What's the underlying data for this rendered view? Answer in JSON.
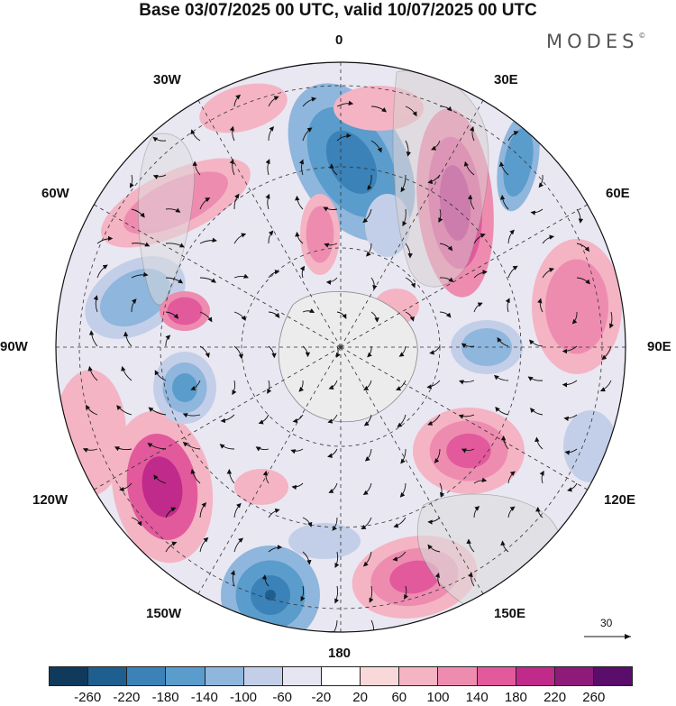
{
  "title": "Base 03/07/2025 00 UTC, valid 10/07/2025 00 UTC",
  "brand": "MODES",
  "brand_mark": "©",
  "map": {
    "projection": "south-polar-stereographic",
    "meridian_labels": {
      "m0": "0",
      "m30e": "30E",
      "m60e": "60E",
      "m90e": "90E",
      "m120e": "120E",
      "m150e": "150E",
      "m180": "180",
      "m150w": "150W",
      "m120w": "120W",
      "m90w": "90W",
      "m60w": "60W",
      "m30w": "30W"
    },
    "vector_reference": "30",
    "land_color": "#e8e8e8"
  },
  "colorbar": {
    "colors": [
      "#0f3a5c",
      "#1f5f8f",
      "#3a82b8",
      "#5a9ccc",
      "#8fb6dc",
      "#c3cfe8",
      "#e6e6f2",
      "#ffffff",
      "#f8d8d8",
      "#f4b4c4",
      "#ee8cb0",
      "#e25a9c",
      "#c02a8a",
      "#8e1a7a",
      "#5a0d6a"
    ],
    "ticks": [
      "-260",
      "-220",
      "-180",
      "-140",
      "-100",
      "-60",
      "-20",
      "20",
      "60",
      "100",
      "140",
      "180",
      "220",
      "260"
    ]
  }
}
